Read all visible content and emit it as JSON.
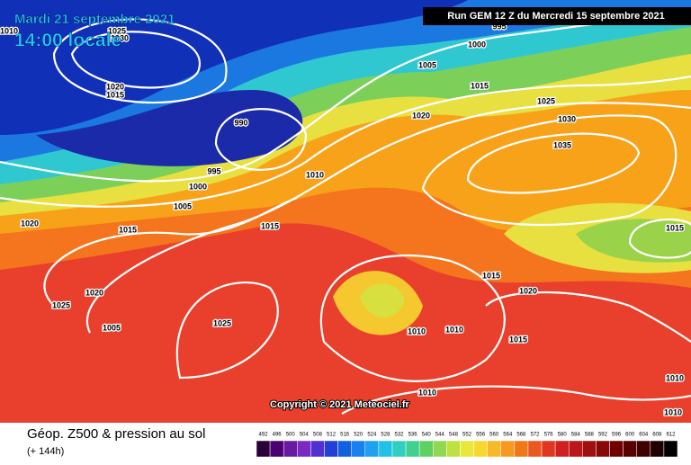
{
  "header": {
    "date": "Mardi 21 septembre 2021",
    "time": "14:00 locale",
    "run": "Run GEM 12 Z du Mercredi 15 septembre 2021"
  },
  "isobar_labels": [
    1010,
    1025,
    1030,
    995,
    1000,
    1005,
    1020,
    1015,
    1015,
    1025,
    990,
    1020,
    1030,
    1035,
    995,
    1010,
    1000,
    1005,
    1020,
    1015,
    1015,
    1015,
    1015,
    1020,
    1020,
    1025,
    1005,
    1025,
    1010,
    1010,
    1015,
    1010,
    1010,
    1010
  ],
  "copyright": "Copyright © 2021 Meteociel.fr",
  "footer": {
    "title": "Géop. Z500 & pression au sol",
    "lead": "(+ 144h)"
  },
  "scale": [
    492,
    496,
    500,
    504,
    508,
    512,
    516,
    520,
    524,
    528,
    532,
    536,
    540,
    544,
    548,
    552,
    556,
    560,
    564,
    568,
    572,
    576,
    580,
    584,
    588,
    592,
    596,
    600,
    604,
    608,
    612
  ]
}
